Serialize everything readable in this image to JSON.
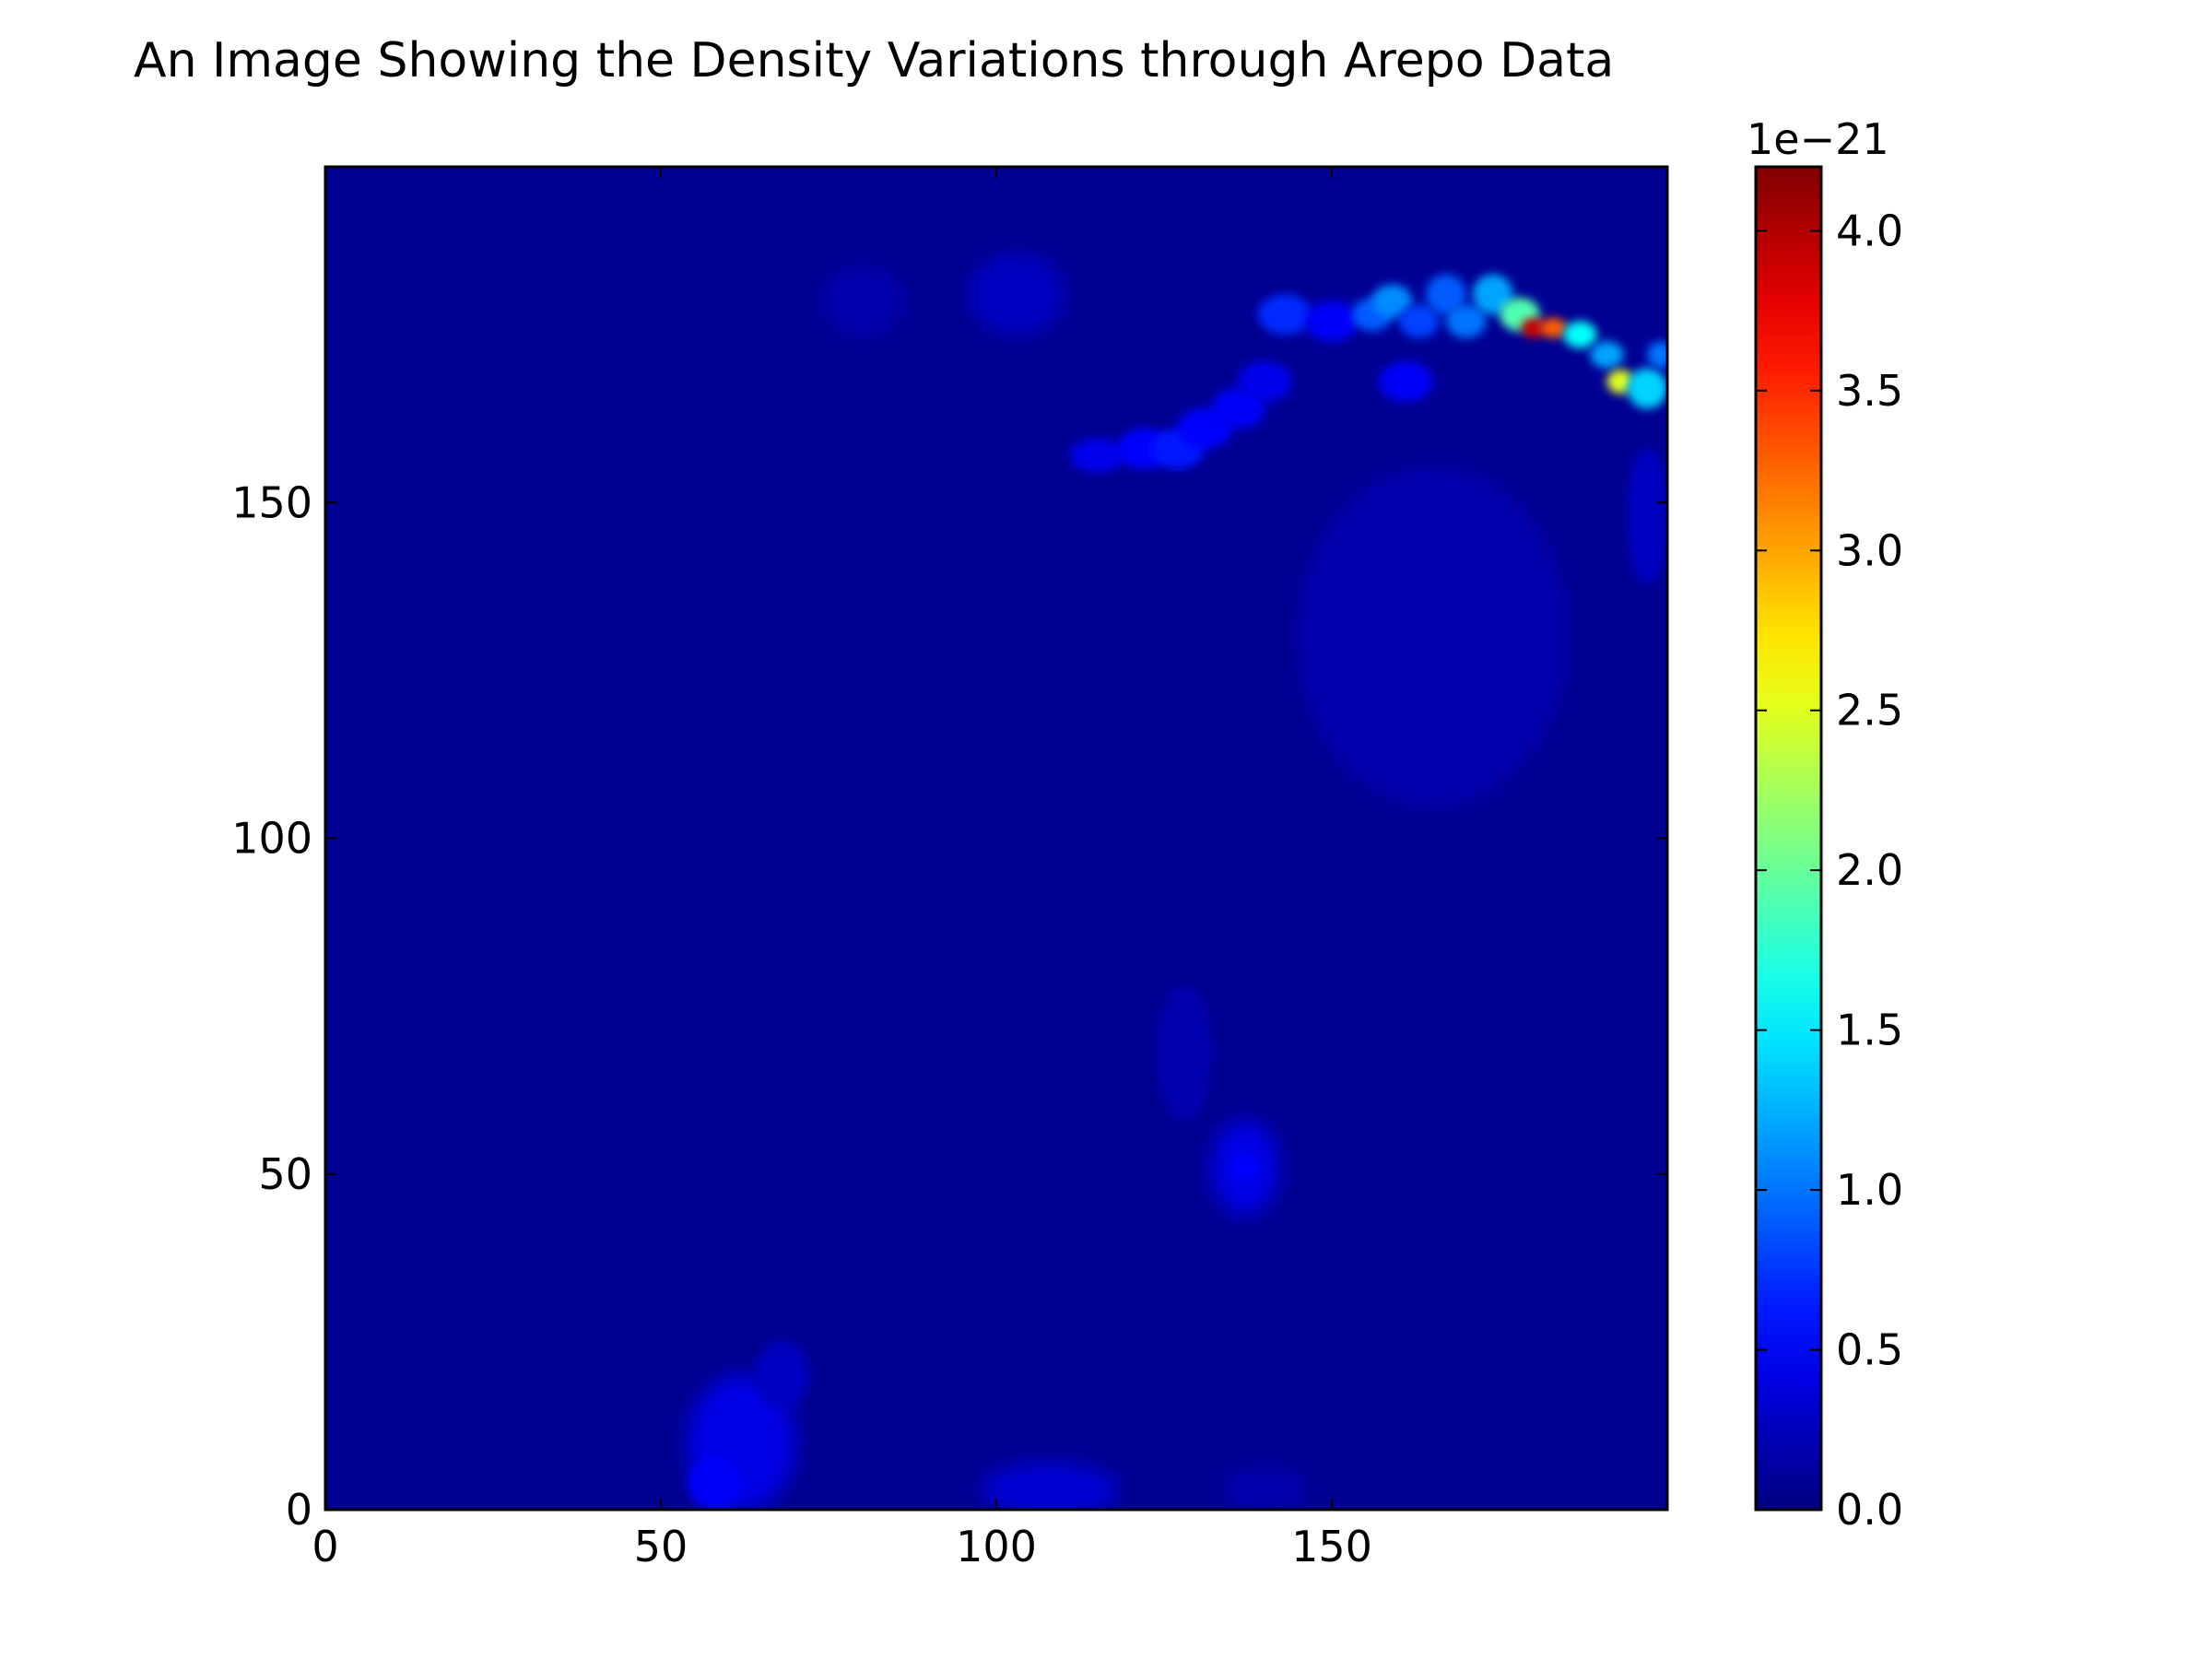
{
  "chart_data": {
    "type": "heatmap",
    "title": "An Image Showing the Density Variations through Arepo Data",
    "xlabel": "",
    "ylabel": "",
    "xlim": [
      0,
      200
    ],
    "ylim": [
      0,
      200
    ],
    "x_ticks": [
      0,
      50,
      100,
      150
    ],
    "y_ticks": [
      0,
      50,
      100,
      150
    ],
    "x_tick_labels": [
      "0",
      "50",
      "100",
      "150"
    ],
    "y_tick_labels": [
      "0",
      "50",
      "100",
      "150"
    ],
    "colormap": "jet",
    "colorbar": {
      "range": [
        0.0,
        4.2
      ],
      "exponent_label": "1e−21",
      "ticks": [
        0.0,
        0.5,
        1.0,
        1.5,
        2.0,
        2.5,
        3.0,
        3.5,
        4.0
      ],
      "tick_labels": [
        "0.0",
        "0.5",
        "1.0",
        "1.5",
        "2.0",
        "2.5",
        "3.0",
        "3.5",
        "4.0"
      ]
    },
    "grid": false,
    "background_value": 0.08,
    "features": [
      {
        "name": "filament",
        "x": 115,
        "y": 157,
        "rx": 4,
        "ry": 2.5,
        "value": 0.45
      },
      {
        "name": "filament",
        "x": 122,
        "y": 158,
        "rx": 4,
        "ry": 3,
        "value": 0.55
      },
      {
        "name": "filament",
        "x": 127,
        "y": 158,
        "rx": 4,
        "ry": 3,
        "value": 0.6
      },
      {
        "name": "filament",
        "x": 131,
        "y": 161,
        "rx": 4,
        "ry": 3,
        "value": 0.55
      },
      {
        "name": "filament",
        "x": 136,
        "y": 164,
        "rx": 4,
        "ry": 3,
        "value": 0.5
      },
      {
        "name": "filament",
        "x": 140,
        "y": 168,
        "rx": 4,
        "ry": 3,
        "value": 0.45
      },
      {
        "name": "filament",
        "x": 143,
        "y": 178,
        "rx": 4,
        "ry": 3,
        "value": 0.7
      },
      {
        "name": "filament",
        "x": 150,
        "y": 177,
        "rx": 4,
        "ry": 3,
        "value": 0.5
      },
      {
        "name": "filament",
        "x": 156,
        "y": 178,
        "rx": 3,
        "ry": 2.5,
        "value": 0.9
      },
      {
        "name": "filament",
        "x": 159,
        "y": 180,
        "rx": 3,
        "ry": 2.5,
        "value": 1.1
      },
      {
        "name": "filament",
        "x": 163,
        "y": 177,
        "rx": 3,
        "ry": 2.5,
        "value": 0.8
      },
      {
        "name": "filament",
        "x": 167,
        "y": 181,
        "rx": 3,
        "ry": 3,
        "value": 0.9
      },
      {
        "name": "filament",
        "x": 170,
        "y": 177,
        "rx": 3,
        "ry": 2.5,
        "value": 1.0
      },
      {
        "name": "filament",
        "x": 174,
        "y": 181,
        "rx": 3,
        "ry": 3,
        "value": 1.2
      },
      {
        "name": "filament",
        "x": 178,
        "y": 178,
        "rx": 3,
        "ry": 2.5,
        "value": 1.9
      },
      {
        "name": "filament",
        "x": 180,
        "y": 176,
        "rx": 1.8,
        "ry": 1.5,
        "value": 3.9
      },
      {
        "name": "filament",
        "x": 183,
        "y": 176,
        "rx": 2,
        "ry": 1.5,
        "value": 3.3
      },
      {
        "name": "filament",
        "x": 187,
        "y": 175,
        "rx": 2.5,
        "ry": 2,
        "value": 1.6
      },
      {
        "name": "filament",
        "x": 191,
        "y": 172,
        "rx": 2.5,
        "ry": 2,
        "value": 1.2
      },
      {
        "name": "filament",
        "x": 193,
        "y": 168,
        "rx": 2,
        "ry": 1.8,
        "value": 2.5
      },
      {
        "name": "filament",
        "x": 197,
        "y": 167,
        "rx": 3,
        "ry": 3,
        "value": 1.4
      },
      {
        "name": "filament",
        "x": 199,
        "y": 172,
        "rx": 2,
        "ry": 2,
        "value": 1.0
      },
      {
        "name": "filament",
        "x": 161,
        "y": 168,
        "rx": 4,
        "ry": 3,
        "value": 0.5
      },
      {
        "name": "diffuse",
        "x": 103,
        "y": 181,
        "rx": 7,
        "ry": 6,
        "value": 0.28
      },
      {
        "name": "diffuse",
        "x": 80,
        "y": 180,
        "rx": 6,
        "ry": 5,
        "value": 0.2
      },
      {
        "name": "diffuse",
        "x": 165,
        "y": 130,
        "rx": 20,
        "ry": 25,
        "value": 0.2
      },
      {
        "name": "diffuse",
        "x": 197,
        "y": 148,
        "rx": 3,
        "ry": 10,
        "value": 0.28
      },
      {
        "name": "clump",
        "x": 137,
        "y": 51,
        "rx": 5,
        "ry": 7,
        "value": 0.42
      },
      {
        "name": "clump",
        "x": 137,
        "y": 51,
        "rx": 2,
        "ry": 2,
        "value": 0.55
      },
      {
        "name": "diffuse",
        "x": 128,
        "y": 68,
        "rx": 4,
        "ry": 10,
        "value": 0.2
      },
      {
        "name": "clump",
        "x": 62,
        "y": 10,
        "rx": 8,
        "ry": 10,
        "value": 0.42
      },
      {
        "name": "clump",
        "x": 58,
        "y": 4,
        "rx": 4,
        "ry": 4,
        "value": 0.5
      },
      {
        "name": "diffuse",
        "x": 68,
        "y": 20,
        "rx": 4,
        "ry": 5,
        "value": 0.28
      },
      {
        "name": "clump",
        "x": 108,
        "y": 3,
        "rx": 10,
        "ry": 4,
        "value": 0.35
      },
      {
        "name": "diffuse",
        "x": 140,
        "y": 3,
        "rx": 6,
        "ry": 3,
        "value": 0.2
      }
    ]
  }
}
